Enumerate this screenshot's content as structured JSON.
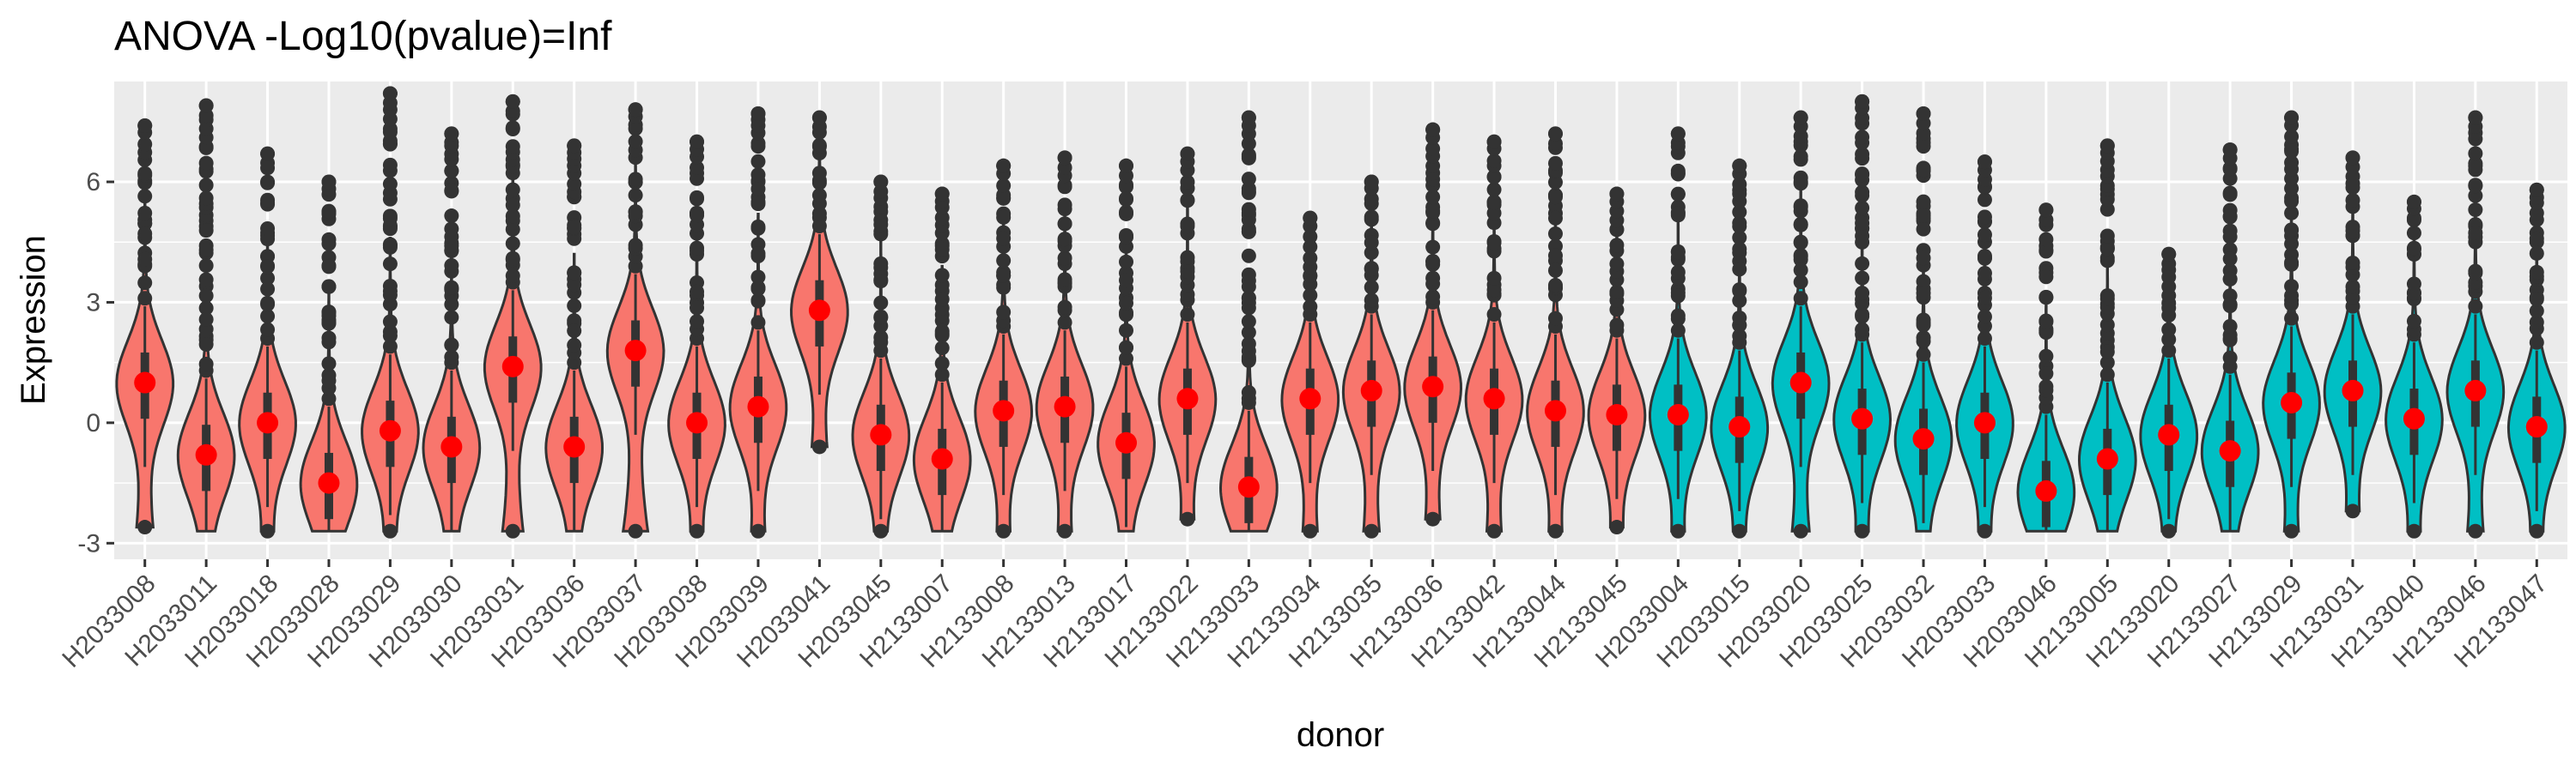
{
  "chart_data": {
    "type": "violin",
    "title": "ANOVA -Log10(pvalue)=Inf",
    "xlabel": "donor",
    "ylabel": "Expression",
    "ylim": [
      -3.4,
      8.5
    ],
    "yticks": [
      -3,
      0,
      3,
      6
    ],
    "ytick_labels": [
      "-3",
      "0",
      "3",
      "6"
    ],
    "grid": true,
    "legend": "none",
    "group_colors": {
      "A": "#F8766D",
      "B": "#00BFC4"
    },
    "mean_marker_color": "#FF0000",
    "outline_color": "#333333",
    "categories": [
      "H2033008",
      "H2033011",
      "H2033018",
      "H2033028",
      "H2033029",
      "H2033030",
      "H2033031",
      "H2033036",
      "H2033037",
      "H2033038",
      "H2033039",
      "H2033041",
      "H2033045",
      "H2133007",
      "H2133008",
      "H2133013",
      "H2133017",
      "H2133022",
      "H2133033",
      "H2133034",
      "H2133035",
      "H2133036",
      "H2133042",
      "H2133044",
      "H2133045",
      "H2033004",
      "H2033015",
      "H2033020",
      "H2033025",
      "H2033032",
      "H2033033",
      "H2033046",
      "H2133005",
      "H2133020",
      "H2133027",
      "H2133029",
      "H2133031",
      "H2133040",
      "H2133046",
      "H2133047"
    ],
    "group": [
      "A",
      "A",
      "A",
      "A",
      "A",
      "A",
      "A",
      "A",
      "A",
      "A",
      "A",
      "A",
      "A",
      "A",
      "A",
      "A",
      "A",
      "A",
      "A",
      "A",
      "A",
      "A",
      "A",
      "A",
      "A",
      "B",
      "B",
      "B",
      "B",
      "B",
      "B",
      "B",
      "B",
      "B",
      "B",
      "B",
      "B",
      "B",
      "B",
      "B"
    ],
    "means": [
      1.0,
      -0.8,
      0.0,
      -1.5,
      -0.2,
      -0.6,
      1.4,
      -0.6,
      1.8,
      0.0,
      0.4,
      2.8,
      -0.3,
      -0.9,
      0.3,
      0.4,
      -0.5,
      0.6,
      -1.6,
      0.6,
      0.8,
      0.9,
      0.6,
      0.3,
      0.2,
      0.2,
      -0.1,
      1.0,
      0.1,
      -0.4,
      0.0,
      -1.7,
      -0.9,
      -0.3,
      -0.7,
      0.5,
      0.8,
      0.1,
      0.8,
      -0.1
    ],
    "ymin": [
      -2.6,
      -2.7,
      -2.7,
      -2.7,
      -2.7,
      -2.7,
      -2.7,
      -2.7,
      -2.7,
      -2.7,
      -2.7,
      -0.6,
      -2.7,
      -2.7,
      -2.7,
      -2.7,
      -2.7,
      -2.4,
      -2.7,
      -2.7,
      -2.7,
      -2.4,
      -2.7,
      -2.7,
      -2.6,
      -2.7,
      -2.7,
      -2.7,
      -2.7,
      -2.7,
      -2.7,
      -2.7,
      -2.7,
      -2.7,
      -2.7,
      -2.7,
      -2.2,
      -2.7,
      -2.7,
      -2.7
    ],
    "ymax": [
      7.4,
      7.9,
      6.7,
      6.0,
      8.2,
      7.2,
      8.0,
      6.9,
      7.8,
      7.0,
      7.7,
      7.6,
      6.0,
      5.7,
      6.4,
      6.6,
      6.4,
      6.7,
      7.6,
      5.1,
      6.0,
      7.3,
      7.0,
      7.2,
      5.7,
      7.2,
      6.4,
      7.6,
      8.0,
      7.7,
      6.5,
      5.3,
      6.9,
      4.2,
      6.8,
      7.6,
      6.6,
      5.5,
      7.6,
      5.8
    ]
  }
}
